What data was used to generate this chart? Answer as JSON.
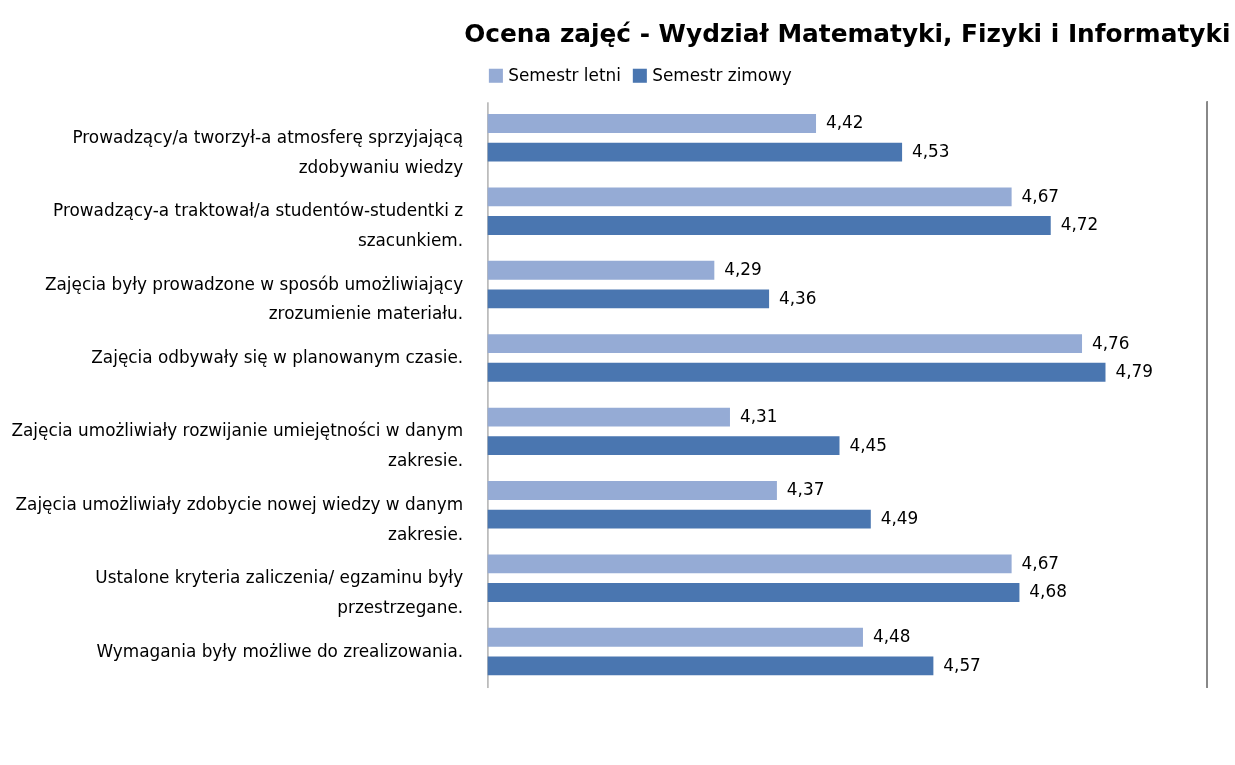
{
  "chart_data": {
    "type": "bar",
    "orientation": "horizontal",
    "title": "Ocena zajęć - Wydział Matematyki, Fizyki i Informatyki",
    "categories": [
      "Prowadzący/a tworzył-a atmosferę sprzyjającą zdobywaniu wiedzy",
      "Prowadzący-a traktował/a studentów-studentki z szacunkiem.",
      "Zajęcia były prowadzone w sposób umożliwiający zrozumienie materiału.",
      "Zajęcia odbywały się w planowanym czasie.",
      "Zajęcia umożliwiały rozwijanie umiejętności w danym zakresie.",
      "Zajęcia umożliwiały zdobycie nowej wiedzy w danym zakresie.",
      "Ustalone kryteria zaliczenia/ egzaminu były przestrzegane.",
      "Wymagania  były możliwe do zrealizowania."
    ],
    "series": [
      {
        "name": "Semestr letni",
        "color": "#95abd5",
        "values": [
          4.42,
          4.67,
          4.29,
          4.76,
          4.31,
          4.37,
          4.67,
          4.48
        ],
        "value_labels": [
          "4,42",
          "4,67",
          "4,29",
          "4,76",
          "4,31",
          "4,37",
          "4,67",
          "4,48"
        ]
      },
      {
        "name": "Semestr zimowy",
        "color": "#4a76b0",
        "values": [
          4.53,
          4.72,
          4.36,
          4.79,
          4.45,
          4.49,
          4.68,
          4.57
        ],
        "value_labels": [
          "4,53",
          "4,72",
          "4,36",
          "4,79",
          "4,45",
          "4,49",
          "4,68",
          "4,57"
        ]
      }
    ],
    "xlim": [
      4,
      4.92
    ],
    "tick_labels": "y",
    "legend": "top",
    "grid": false
  }
}
